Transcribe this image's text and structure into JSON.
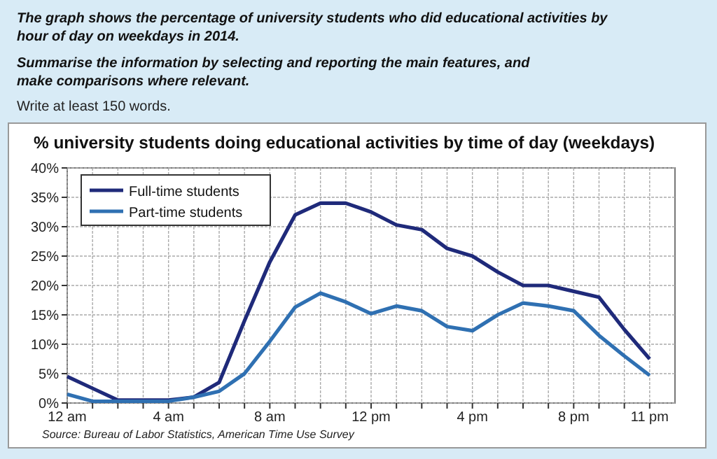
{
  "chart_data": {
    "type": "line",
    "title": "% university students doing educational activities by time of day (weekdays)",
    "annotations": [
      "The graph shows the percentage of university students who did educational activities by hour of day on weekdays in 2014.",
      "Summarise the information by selecting and reporting the main features, and make comparisons where relevant.",
      "Write at least 150 words.",
      "Source: Bureau of Labor Statistics, American Time Use Survey"
    ],
    "categories": [
      "12 am",
      null,
      null,
      null,
      "4 am",
      null,
      null,
      null,
      "8 am",
      null,
      null,
      null,
      "12 pm",
      null,
      null,
      null,
      "4 pm",
      null,
      null,
      null,
      "8 pm",
      null,
      null,
      "11 pm"
    ],
    "series": [
      {
        "name": "Full-time students",
        "color": "#1f2a7a",
        "values": [
          4.5,
          2.5,
          0.5,
          0.5,
          0.5,
          1,
          3.5,
          14,
          24,
          32,
          34,
          34,
          32.5,
          30.3,
          29.5,
          26.3,
          25,
          22.3,
          20,
          20,
          19,
          18,
          12.5,
          7.5
        ]
      },
      {
        "name": "Part-time students",
        "color": "#2f70b2",
        "values": [
          1.5,
          0.3,
          0.3,
          0.3,
          0.3,
          1,
          2,
          5,
          10.5,
          16.3,
          18.7,
          17.2,
          15.2,
          16.5,
          15.7,
          13,
          12.3,
          15,
          17,
          16.5,
          15.7,
          11.5,
          8,
          4.7
        ]
      }
    ],
    "ylim": [
      0,
      40
    ],
    "yticks": [
      {
        "value": 0,
        "label": "0%"
      },
      {
        "value": 5,
        "label": "5%"
      },
      {
        "value": 10,
        "label": "10%"
      },
      {
        "value": 15,
        "label": "15%"
      },
      {
        "value": 20,
        "label": "20%"
      },
      {
        "value": 25,
        "label": "25%"
      },
      {
        "value": 30,
        "label": "30%"
      },
      {
        "value": 35,
        "label": "35%"
      },
      {
        "value": 40,
        "label": "40%"
      }
    ],
    "grid": true,
    "legend": "top left",
    "marker": "none",
    "line_style": "solid"
  }
}
